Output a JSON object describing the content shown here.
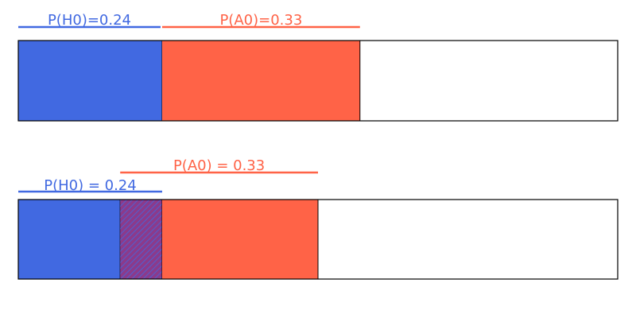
{
  "colors": {
    "h0": "#4169E1",
    "a0": "#FF6347",
    "overlap": "#8B3A8B",
    "outline": "#000000",
    "background": "#FFFFFF"
  },
  "chart_data": [
    {
      "type": "bar",
      "orientation": "horizontal-stacked-probability",
      "xlim": [
        0,
        1
      ],
      "segments": [
        {
          "name": "H0",
          "start": 0.0,
          "end": 0.24,
          "color": "#4169E1"
        },
        {
          "name": "A0",
          "start": 0.24,
          "end": 0.57,
          "color": "#FF6347"
        }
      ],
      "labels": [
        {
          "series": "H0",
          "text": "P(H0)=0.24",
          "start": 0.0,
          "end": 0.24,
          "color": "#4169E1"
        },
        {
          "series": "A0",
          "text": "P(A0)=0.33",
          "start": 0.24,
          "end": 0.57,
          "color": "#FF6347"
        }
      ],
      "grid": false
    },
    {
      "type": "bar",
      "orientation": "horizontal-stacked-probability",
      "xlim": [
        0,
        1
      ],
      "segments": [
        {
          "name": "H0",
          "start": 0.0,
          "end": 0.17,
          "color": "#4169E1"
        },
        {
          "name": "overlap",
          "start": 0.17,
          "end": 0.24,
          "color": "#8B3A8B",
          "hatched": true
        },
        {
          "name": "A0",
          "start": 0.24,
          "end": 0.5,
          "color": "#FF6347"
        }
      ],
      "labels": [
        {
          "series": "H0",
          "text": "P(H0) = 0.24",
          "start": 0.0,
          "end": 0.24,
          "color": "#4169E1"
        },
        {
          "series": "A0",
          "text": "P(A0) = 0.33",
          "start": 0.17,
          "end": 0.5,
          "color": "#FF6347"
        }
      ],
      "grid": false
    }
  ]
}
